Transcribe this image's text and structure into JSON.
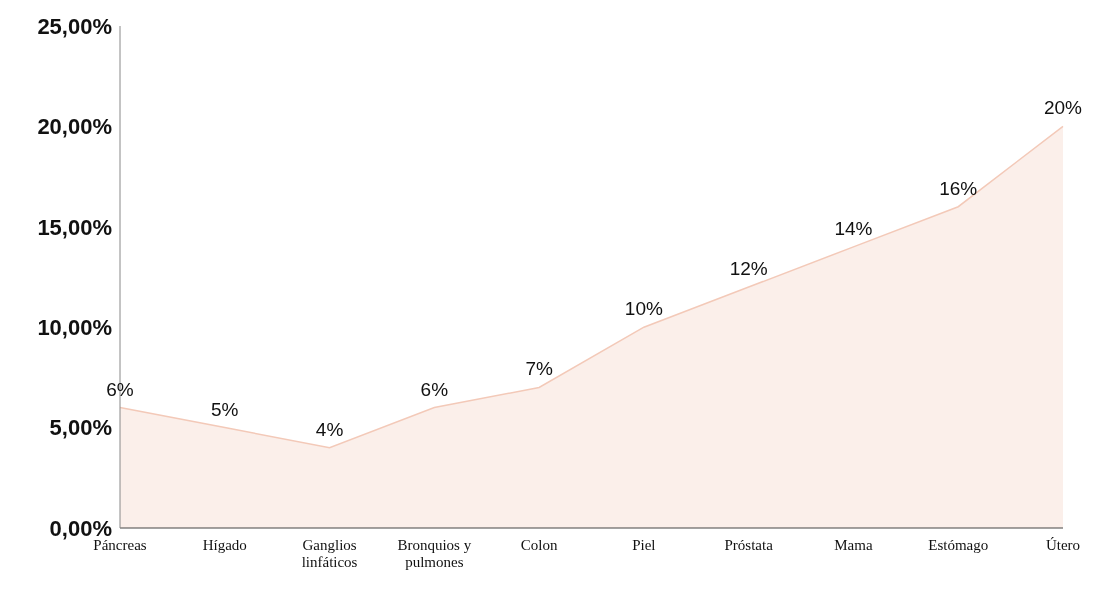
{
  "chart_data": {
    "type": "area",
    "categories": [
      "Páncreas",
      "Hígado",
      "Ganglios linfáticos",
      "Bronquios y pulmones",
      "Colon",
      "Piel",
      "Próstata",
      "Mama",
      "Estómago",
      "Útero"
    ],
    "series": [
      {
        "color": "#f3c9b8",
        "values": [
          6,
          5,
          4,
          6,
          7,
          10,
          12,
          14,
          16,
          20
        ],
        "value_labels": [
          "6%",
          "5%",
          "4%",
          "6%",
          "7%",
          "10%",
          "12%",
          "14%",
          "16%",
          "20%"
        ]
      }
    ],
    "ylim": [
      0,
      25
    ],
    "yticks": [
      {
        "value": 0,
        "label": "0,00%"
      },
      {
        "value": 5,
        "label": "5,00%"
      },
      {
        "value": 10,
        "label": "10,00%"
      },
      {
        "value": 15,
        "label": "15,00%"
      },
      {
        "value": 20,
        "label": "20,00%"
      },
      {
        "value": 25,
        "label": "25,00%"
      }
    ],
    "grid": false,
    "legend": false
  }
}
